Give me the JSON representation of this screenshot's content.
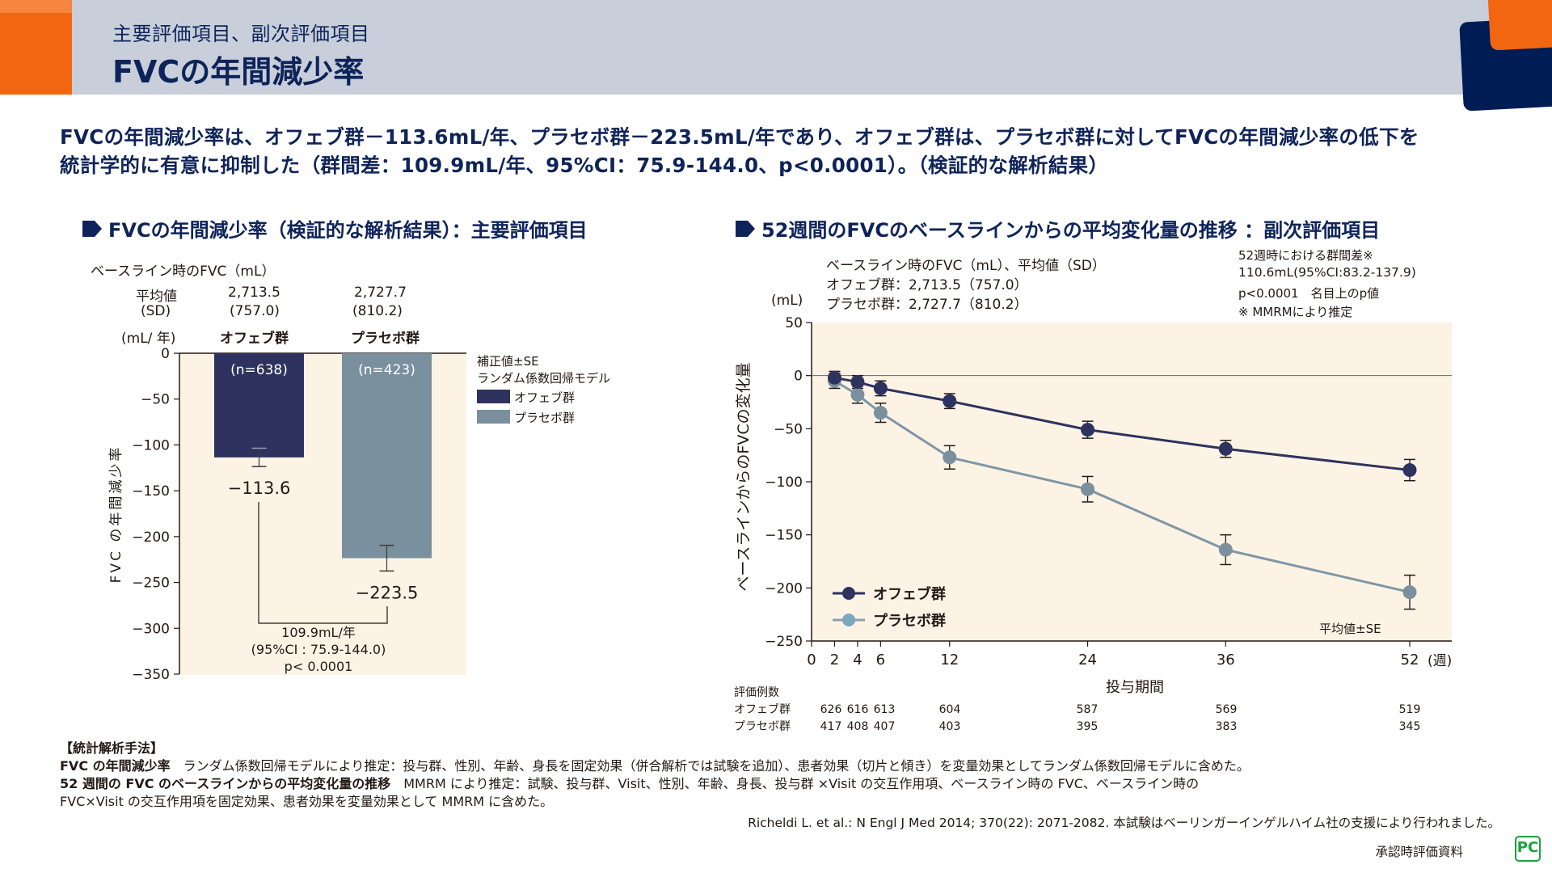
{
  "header": {
    "subtitle": "主要評価項目、副次評価項目",
    "title": "FVCの年間減少率"
  },
  "statement": {
    "line1": "FVCの年間減少率は、オフェブ群－113.6mL/年、プラセボ群－223.5mL/年であり、オフェブ群は、プラセボ群に対してFVCの年間減少率の低下を",
    "line2": "統計学的に有意に抑制した（群間差：109.9mL/年、95%CI：75.9-144.0、p<0.0001）。（検証的な解析結果）"
  },
  "colors": {
    "navy": "#2e325e",
    "slate": "#7b909e",
    "placebo_line": "#7f97a5",
    "plot_bg": "#fdf3e5",
    "brand_navy": "#0e2359",
    "brand_orange": "#f26611"
  },
  "chart_data": [
    {
      "type": "bar",
      "title": "FVCの年間減少率（検証的な解析結果）：主要評価項目",
      "baseline_label": "ベースライン時のFVC（mL）",
      "baseline_rows": {
        "mean_label": "平均値",
        "sd_label": "(SD)",
        "unit_label": "(mL/ 年)",
        "means": [
          "2,713.5",
          "2,727.7"
        ],
        "sds": [
          "(757.0)",
          "(810.2)"
        ]
      },
      "categories": [
        "オフェブ群",
        "プラセボ群"
      ],
      "n_labels": [
        "(n=638)",
        "(n=423)"
      ],
      "values": [
        -113.6,
        -223.5
      ],
      "value_labels": [
        "−113.6",
        "−223.5"
      ],
      "se": [
        10,
        14
      ],
      "ylabel": "FVC の年間減少率",
      "ylim": [
        -350,
        0
      ],
      "yticks": [
        0,
        -50,
        -100,
        -150,
        -200,
        -250,
        -300,
        -350
      ],
      "ytick_labels": [
        "0",
        "−50",
        "−100",
        "−150",
        "−200",
        "−250",
        "−300",
        "−350"
      ],
      "legend": {
        "title1": "補正値±SE",
        "title2": "ランダム係数回帰モデル",
        "entries": [
          "オフェブ群",
          "プラセボ群"
        ],
        "placement": "right"
      },
      "annotation": {
        "diff": "109.9mL/年",
        "ci": "(95%CI : 75.9-144.0)",
        "p": "p< 0.0001"
      }
    },
    {
      "type": "line",
      "title": "52週間のFVCのベースラインからの平均変化量の推移 ：副次評価項目",
      "baseline_text": [
        "ベースライン時のFVC（mL）、平均値（SD）",
        "オフェブ群：2,713.5（757.0）",
        "プラセボ群：2,727.7（810.2）"
      ],
      "diff_text": [
        "52週時における群間差※",
        "110.6mL(95%CI:83.2-137.9)",
        "p<0.0001　名目上のp値",
        "※ MMRMにより推定"
      ],
      "yunit": "(mL)",
      "ylabel": "ベースラインからのFVCの変化量",
      "xlabel": "投与期間",
      "xunit": "(週)",
      "ylim": [
        -250,
        50
      ],
      "yticks": [
        50,
        0,
        -50,
        -100,
        -150,
        -200,
        -250
      ],
      "ytick_labels": [
        "50",
        "0",
        "−50",
        "−100",
        "−150",
        "−200",
        "−250"
      ],
      "xlim": [
        0,
        52
      ],
      "xticks": [
        0,
        2,
        4,
        6,
        12,
        24,
        36,
        52
      ],
      "x": [
        2,
        4,
        6,
        12,
        24,
        36,
        52
      ],
      "series": [
        {
          "name": "オフェブ群",
          "values": [
            -2,
            -6,
            -12,
            -24,
            -51,
            -69,
            -89
          ],
          "se": [
            6,
            6,
            7,
            7,
            8,
            8,
            10
          ]
        },
        {
          "name": "プラセボ群",
          "values": [
            -5,
            -18,
            -35,
            -77,
            -107,
            -164,
            -204
          ],
          "se": [
            7,
            8,
            9,
            11,
            12,
            14,
            16
          ]
        }
      ],
      "legend_placement": "bottom-left",
      "note": "平均値±SE",
      "counts": {
        "title": "評価例数",
        "rows": [
          {
            "label": "オフェブ群",
            "values": [
              "626",
              "616",
              "613",
              "604",
              "587",
              "569",
              "519"
            ]
          },
          {
            "label": "プラセボ群",
            "values": [
              "417",
              "408",
              "407",
              "403",
              "395",
              "383",
              "345"
            ]
          }
        ]
      }
    }
  ],
  "footnotes": {
    "heading": "【統計解析手法】",
    "line1_bold": "FVC の年間減少率",
    "line1": "　ランダム係数回帰モデルにより推定：投与群、性別、年齢、身長を固定効果（併合解析では試験を追加）、患者効果（切片と傾き）を変量効果としてランダム係数回帰モデルに含めた。",
    "line2_bold": "52 週間の FVC のベースラインからの平均変化量の推移",
    "line2": "　MMRM により推定：試験、投与群、Visit、性別、年齢、身長、投与群 ×Visit の交互作用項、ベースライン時の FVC、ベースライン時の",
    "line3": "FVC×Visit の交互作用項を固定効果、患者効果を変量効果として MMRM に含めた。",
    "reference": "Richeldi L. et al.: N Engl J Med 2014; 370(22): 2071-2082. 本試験はベーリンガーインゲルハイム社の支援により行われました。",
    "approval": "承認時評価資料",
    "badge": "PC"
  }
}
